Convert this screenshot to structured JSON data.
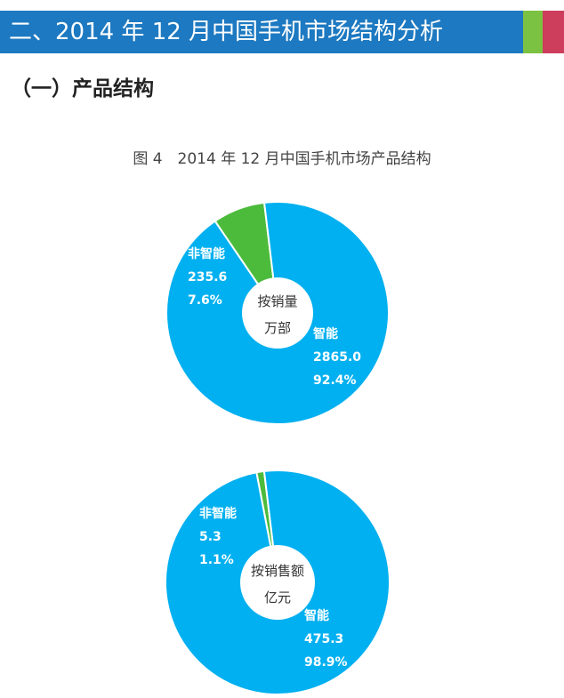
{
  "header": {
    "title": "二、2014 年 12 月中国手机市场结构分析"
  },
  "section": {
    "title": "（一）产品结构"
  },
  "figure": {
    "title": "图 4　2014 年 12 月中国手机市场产品结构"
  },
  "colors": {
    "banner_blue": "#1d79c1",
    "banner_green": "#7cc242",
    "banner_red": "#cd3d5c",
    "smart": "#00b0f0",
    "nonsmart": "#4cbb3c"
  },
  "chart_data": [
    {
      "type": "pie",
      "center_label": [
        "按销量",
        "万部"
      ],
      "categories": [
        "非智能",
        "智能"
      ],
      "values": [
        235.6,
        2865.0
      ],
      "percent_labels": [
        "7.6%",
        "92.4%"
      ],
      "value_labels": [
        "235.6",
        "2865.0"
      ]
    },
    {
      "type": "pie",
      "center_label": [
        "按销售额",
        "亿元"
      ],
      "categories": [
        "非智能",
        "智能"
      ],
      "values": [
        5.3,
        475.3
      ],
      "percent_labels": [
        "1.1%",
        "98.9%"
      ],
      "value_labels": [
        "5.3",
        "475.3"
      ]
    }
  ]
}
